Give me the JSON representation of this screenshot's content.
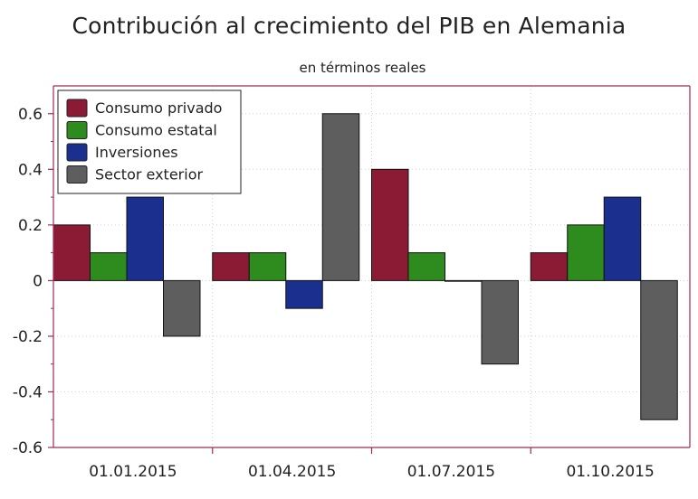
{
  "chart_data": {
    "type": "bar",
    "title": "Contribución al crecimiento del PIB en Alemania",
    "subtitle": "en términos reales",
    "xlabel": "",
    "ylabel": "",
    "categories": [
      "01.01.2015",
      "01.04.2015",
      "01.07.2015",
      "01.10.2015"
    ],
    "series": [
      {
        "name": "Consumo privado",
        "color": "#8b1a35",
        "values": [
          0.2,
          0.1,
          0.4,
          0.1
        ]
      },
      {
        "name": "Consumo estatal",
        "color": "#2e8b1e",
        "values": [
          0.1,
          0.1,
          0.1,
          0.2
        ]
      },
      {
        "name": "Inversiones",
        "color": "#1b2f8e",
        "values": [
          0.3,
          -0.1,
          0.0,
          0.3
        ]
      },
      {
        "name": "Sector exterior",
        "color": "#5e5e5e",
        "values": [
          -0.2,
          0.6,
          -0.3,
          -0.5
        ]
      }
    ],
    "ylim": [
      -0.6,
      0.7
    ],
    "yticks": [
      {
        "value": 0.6,
        "label": "0.6"
      },
      {
        "value": 0.4,
        "label": "0.4"
      },
      {
        "value": 0.2,
        "label": "0.2"
      },
      {
        "value": 0,
        "label": "0"
      },
      {
        "value": -0.2,
        "label": "-0.2"
      },
      {
        "value": -0.4,
        "label": "-0.4"
      },
      {
        "value": -0.6,
        "label": "-0.6"
      }
    ],
    "grid": true,
    "legend_position": "top-left",
    "frame_color": "#9c2a5a"
  }
}
